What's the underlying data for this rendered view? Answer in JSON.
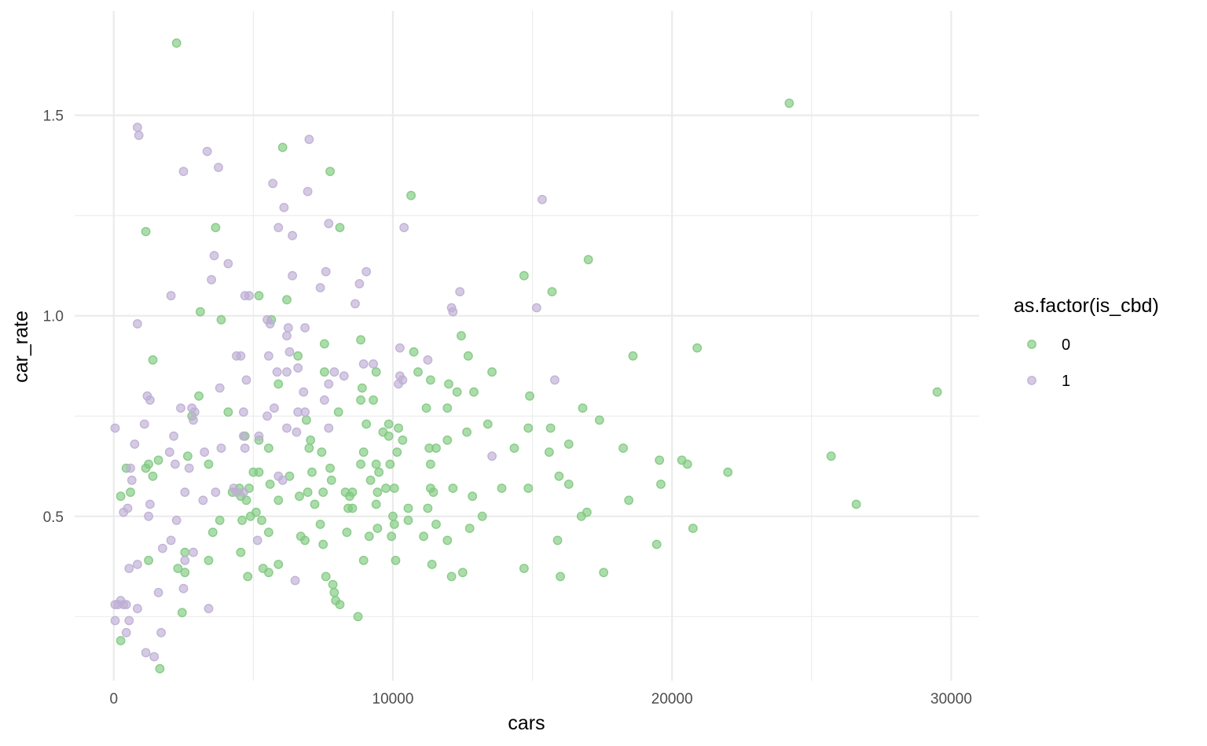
{
  "chart_data": {
    "type": "scatter",
    "xlabel": "cars",
    "ylabel": "car_rate",
    "xlim": [
      -1400,
      31000
    ],
    "ylim": [
      0.09,
      1.76
    ],
    "x_ticks": [
      0,
      10000,
      20000,
      30000
    ],
    "x_tick_labels": [
      "0",
      "10000",
      "20000",
      "30000"
    ],
    "x_minor": [
      5000,
      15000,
      25000
    ],
    "y_ticks": [
      0.5,
      1.0,
      1.5
    ],
    "y_tick_labels": [
      "0.5",
      "1.0",
      "1.5"
    ],
    "y_minor": [
      0.25,
      0.75,
      1.25
    ],
    "grid": true,
    "legend": {
      "title": "as.factor(is_cbd)",
      "position": "right"
    },
    "series": [
      {
        "name": "0",
        "color": "#7fc97f",
        "points": [
          [
            2250,
            1.68
          ],
          [
            24200,
            1.53
          ],
          [
            6050,
            1.42
          ],
          [
            7750,
            1.36
          ],
          [
            1150,
            1.21
          ],
          [
            3650,
            1.22
          ],
          [
            8100,
            1.22
          ],
          [
            10650,
            1.3
          ],
          [
            17000,
            1.14
          ],
          [
            14700,
            1.1
          ],
          [
            15700,
            1.06
          ],
          [
            5200,
            1.05
          ],
          [
            6200,
            1.04
          ],
          [
            3100,
            1.01
          ],
          [
            5650,
            0.99
          ],
          [
            3850,
            0.99
          ],
          [
            8850,
            0.94
          ],
          [
            7550,
            0.93
          ],
          [
            12450,
            0.95
          ],
          [
            20900,
            0.92
          ],
          [
            18600,
            0.9
          ],
          [
            12700,
            0.9
          ],
          [
            6600,
            0.9
          ],
          [
            1400,
            0.89
          ],
          [
            10750,
            0.91
          ],
          [
            13550,
            0.86
          ],
          [
            9400,
            0.86
          ],
          [
            7550,
            0.86
          ],
          [
            10900,
            0.86
          ],
          [
            8900,
            0.82
          ],
          [
            5900,
            0.83
          ],
          [
            11350,
            0.84
          ],
          [
            12000,
            0.83
          ],
          [
            29500,
            0.81
          ],
          [
            12300,
            0.81
          ],
          [
            12900,
            0.81
          ],
          [
            14900,
            0.8
          ],
          [
            9300,
            0.79
          ],
          [
            8850,
            0.79
          ],
          [
            3050,
            0.8
          ],
          [
            16800,
            0.77
          ],
          [
            11200,
            0.77
          ],
          [
            11950,
            0.77
          ],
          [
            4100,
            0.76
          ],
          [
            8050,
            0.76
          ],
          [
            17400,
            0.74
          ],
          [
            2800,
            0.75
          ],
          [
            6900,
            0.74
          ],
          [
            9050,
            0.73
          ],
          [
            9850,
            0.73
          ],
          [
            13400,
            0.73
          ],
          [
            10200,
            0.72
          ],
          [
            14850,
            0.72
          ],
          [
            15650,
            0.72
          ],
          [
            9650,
            0.71
          ],
          [
            12650,
            0.71
          ],
          [
            9850,
            0.7
          ],
          [
            4700,
            0.7
          ],
          [
            5200,
            0.69
          ],
          [
            10350,
            0.69
          ],
          [
            11950,
            0.69
          ],
          [
            7050,
            0.69
          ],
          [
            7000,
            0.67
          ],
          [
            11300,
            0.67
          ],
          [
            11550,
            0.67
          ],
          [
            14350,
            0.67
          ],
          [
            16300,
            0.68
          ],
          [
            18250,
            0.67
          ],
          [
            8950,
            0.66
          ],
          [
            10150,
            0.66
          ],
          [
            7450,
            0.66
          ],
          [
            5550,
            0.67
          ],
          [
            2650,
            0.65
          ],
          [
            15600,
            0.66
          ],
          [
            19550,
            0.64
          ],
          [
            20350,
            0.64
          ],
          [
            9400,
            0.63
          ],
          [
            9900,
            0.63
          ],
          [
            11350,
            0.63
          ],
          [
            20550,
            0.63
          ],
          [
            1600,
            0.64
          ],
          [
            1150,
            0.62
          ],
          [
            1250,
            0.63
          ],
          [
            3400,
            0.63
          ],
          [
            7750,
            0.62
          ],
          [
            8850,
            0.63
          ],
          [
            5000,
            0.61
          ],
          [
            5200,
            0.61
          ],
          [
            7100,
            0.61
          ],
          [
            9500,
            0.61
          ],
          [
            15950,
            0.6
          ],
          [
            22000,
            0.61
          ],
          [
            450,
            0.62
          ],
          [
            1400,
            0.6
          ],
          [
            6300,
            0.6
          ],
          [
            7800,
            0.59
          ],
          [
            9200,
            0.59
          ],
          [
            16300,
            0.58
          ],
          [
            19600,
            0.58
          ],
          [
            5600,
            0.58
          ],
          [
            9750,
            0.57
          ],
          [
            10050,
            0.57
          ],
          [
            11350,
            0.57
          ],
          [
            12150,
            0.57
          ],
          [
            13900,
            0.57
          ],
          [
            14850,
            0.57
          ],
          [
            4500,
            0.57
          ],
          [
            4850,
            0.57
          ],
          [
            6950,
            0.56
          ],
          [
            7500,
            0.56
          ],
          [
            8300,
            0.56
          ],
          [
            8550,
            0.56
          ],
          [
            250,
            0.55
          ],
          [
            600,
            0.56
          ],
          [
            4250,
            0.56
          ],
          [
            4550,
            0.55
          ],
          [
            8450,
            0.55
          ],
          [
            9450,
            0.56
          ],
          [
            11450,
            0.56
          ],
          [
            12850,
            0.55
          ],
          [
            6650,
            0.55
          ],
          [
            5900,
            0.54
          ],
          [
            4750,
            0.54
          ],
          [
            7200,
            0.53
          ],
          [
            9400,
            0.53
          ],
          [
            10550,
            0.52
          ],
          [
            11250,
            0.52
          ],
          [
            18450,
            0.54
          ],
          [
            8400,
            0.52
          ],
          [
            8550,
            0.52
          ],
          [
            4900,
            0.5
          ],
          [
            5100,
            0.51
          ],
          [
            4600,
            0.49
          ],
          [
            5300,
            0.49
          ],
          [
            3800,
            0.49
          ],
          [
            10000,
            0.5
          ],
          [
            13200,
            0.5
          ],
          [
            16950,
            0.51
          ],
          [
            16750,
            0.5
          ],
          [
            7400,
            0.48
          ],
          [
            10050,
            0.48
          ],
          [
            10550,
            0.49
          ],
          [
            11550,
            0.48
          ],
          [
            9450,
            0.47
          ],
          [
            12750,
            0.47
          ],
          [
            20750,
            0.47
          ],
          [
            3550,
            0.46
          ],
          [
            5550,
            0.46
          ],
          [
            8350,
            0.46
          ],
          [
            9150,
            0.45
          ],
          [
            9950,
            0.45
          ],
          [
            11100,
            0.45
          ],
          [
            11950,
            0.44
          ],
          [
            15900,
            0.44
          ],
          [
            6700,
            0.45
          ],
          [
            6850,
            0.44
          ],
          [
            19450,
            0.43
          ],
          [
            7500,
            0.43
          ],
          [
            2550,
            0.41
          ],
          [
            4550,
            0.41
          ],
          [
            1250,
            0.39
          ],
          [
            3400,
            0.39
          ],
          [
            8950,
            0.39
          ],
          [
            10100,
            0.39
          ],
          [
            11400,
            0.38
          ],
          [
            5900,
            0.38
          ],
          [
            5350,
            0.37
          ],
          [
            2300,
            0.37
          ],
          [
            5550,
            0.36
          ],
          [
            2550,
            0.36
          ],
          [
            14700,
            0.37
          ],
          [
            12500,
            0.36
          ],
          [
            12100,
            0.35
          ],
          [
            16000,
            0.35
          ],
          [
            17550,
            0.36
          ],
          [
            4800,
            0.35
          ],
          [
            7600,
            0.35
          ],
          [
            7850,
            0.33
          ],
          [
            7900,
            0.31
          ],
          [
            7950,
            0.29
          ],
          [
            8100,
            0.28
          ],
          [
            2450,
            0.26
          ],
          [
            8750,
            0.25
          ],
          [
            1650,
            0.12
          ],
          [
            250,
            0.19
          ],
          [
            26600,
            0.53
          ],
          [
            25700,
            0.65
          ]
        ]
      },
      {
        "name": "1",
        "color": "#beaed4",
        "points": [
          [
            850,
            1.47
          ],
          [
            900,
            1.45
          ],
          [
            3350,
            1.41
          ],
          [
            7000,
            1.44
          ],
          [
            2500,
            1.36
          ],
          [
            3750,
            1.37
          ],
          [
            5700,
            1.33
          ],
          [
            6950,
            1.31
          ],
          [
            15350,
            1.29
          ],
          [
            6100,
            1.27
          ],
          [
            7700,
            1.23
          ],
          [
            10400,
            1.22
          ],
          [
            5900,
            1.22
          ],
          [
            6400,
            1.2
          ],
          [
            3600,
            1.15
          ],
          [
            4100,
            1.13
          ],
          [
            7600,
            1.11
          ],
          [
            9050,
            1.11
          ],
          [
            3500,
            1.09
          ],
          [
            6400,
            1.1
          ],
          [
            8800,
            1.08
          ],
          [
            7400,
            1.07
          ],
          [
            12400,
            1.06
          ],
          [
            2050,
            1.05
          ],
          [
            4700,
            1.05
          ],
          [
            4850,
            1.05
          ],
          [
            8650,
            1.03
          ],
          [
            15150,
            1.02
          ],
          [
            12150,
            1.01
          ],
          [
            12100,
            1.02
          ],
          [
            850,
            0.98
          ],
          [
            5600,
            0.98
          ],
          [
            5500,
            0.99
          ],
          [
            6850,
            0.97
          ],
          [
            6250,
            0.97
          ],
          [
            6200,
            0.95
          ],
          [
            10250,
            0.92
          ],
          [
            6300,
            0.91
          ],
          [
            4400,
            0.9
          ],
          [
            4550,
            0.9
          ],
          [
            5550,
            0.9
          ],
          [
            8950,
            0.88
          ],
          [
            9300,
            0.88
          ],
          [
            11250,
            0.89
          ],
          [
            5850,
            0.86
          ],
          [
            6200,
            0.86
          ],
          [
            6600,
            0.87
          ],
          [
            7900,
            0.86
          ],
          [
            8250,
            0.85
          ],
          [
            10250,
            0.85
          ],
          [
            10350,
            0.84
          ],
          [
            10200,
            0.83
          ],
          [
            4750,
            0.84
          ],
          [
            7700,
            0.83
          ],
          [
            15800,
            0.84
          ],
          [
            3800,
            0.82
          ],
          [
            6800,
            0.81
          ],
          [
            1200,
            0.8
          ],
          [
            1300,
            0.79
          ],
          [
            7550,
            0.79
          ],
          [
            2400,
            0.77
          ],
          [
            2800,
            0.77
          ],
          [
            2900,
            0.76
          ],
          [
            4650,
            0.76
          ],
          [
            5750,
            0.77
          ],
          [
            6600,
            0.76
          ],
          [
            6850,
            0.76
          ],
          [
            5500,
            0.75
          ],
          [
            2850,
            0.74
          ],
          [
            1100,
            0.73
          ],
          [
            50,
            0.72
          ],
          [
            6200,
            0.72
          ],
          [
            6550,
            0.71
          ],
          [
            7700,
            0.72
          ],
          [
            2150,
            0.7
          ],
          [
            4650,
            0.7
          ],
          [
            5200,
            0.7
          ],
          [
            750,
            0.68
          ],
          [
            3850,
            0.67
          ],
          [
            2000,
            0.66
          ],
          [
            3250,
            0.66
          ],
          [
            4700,
            0.67
          ],
          [
            13550,
            0.65
          ],
          [
            2200,
            0.63
          ],
          [
            600,
            0.62
          ],
          [
            2700,
            0.62
          ],
          [
            5900,
            0.6
          ],
          [
            6050,
            0.59
          ],
          [
            650,
            0.59
          ],
          [
            4300,
            0.57
          ],
          [
            4400,
            0.56
          ],
          [
            4650,
            0.56
          ],
          [
            2550,
            0.56
          ],
          [
            3650,
            0.56
          ],
          [
            3200,
            0.54
          ],
          [
            1300,
            0.53
          ],
          [
            500,
            0.52
          ],
          [
            350,
            0.51
          ],
          [
            1250,
            0.5
          ],
          [
            2250,
            0.49
          ],
          [
            5150,
            0.44
          ],
          [
            2050,
            0.44
          ],
          [
            1750,
            0.42
          ],
          [
            2850,
            0.41
          ],
          [
            2550,
            0.39
          ],
          [
            850,
            0.38
          ],
          [
            550,
            0.37
          ],
          [
            2500,
            0.32
          ],
          [
            1600,
            0.31
          ],
          [
            6500,
            0.34
          ],
          [
            50,
            0.28
          ],
          [
            150,
            0.28
          ],
          [
            250,
            0.29
          ],
          [
            350,
            0.28
          ],
          [
            450,
            0.28
          ],
          [
            850,
            0.27
          ],
          [
            3400,
            0.27
          ],
          [
            50,
            0.24
          ],
          [
            550,
            0.24
          ],
          [
            450,
            0.21
          ],
          [
            1700,
            0.21
          ],
          [
            1150,
            0.16
          ],
          [
            1450,
            0.15
          ]
        ]
      }
    ]
  }
}
